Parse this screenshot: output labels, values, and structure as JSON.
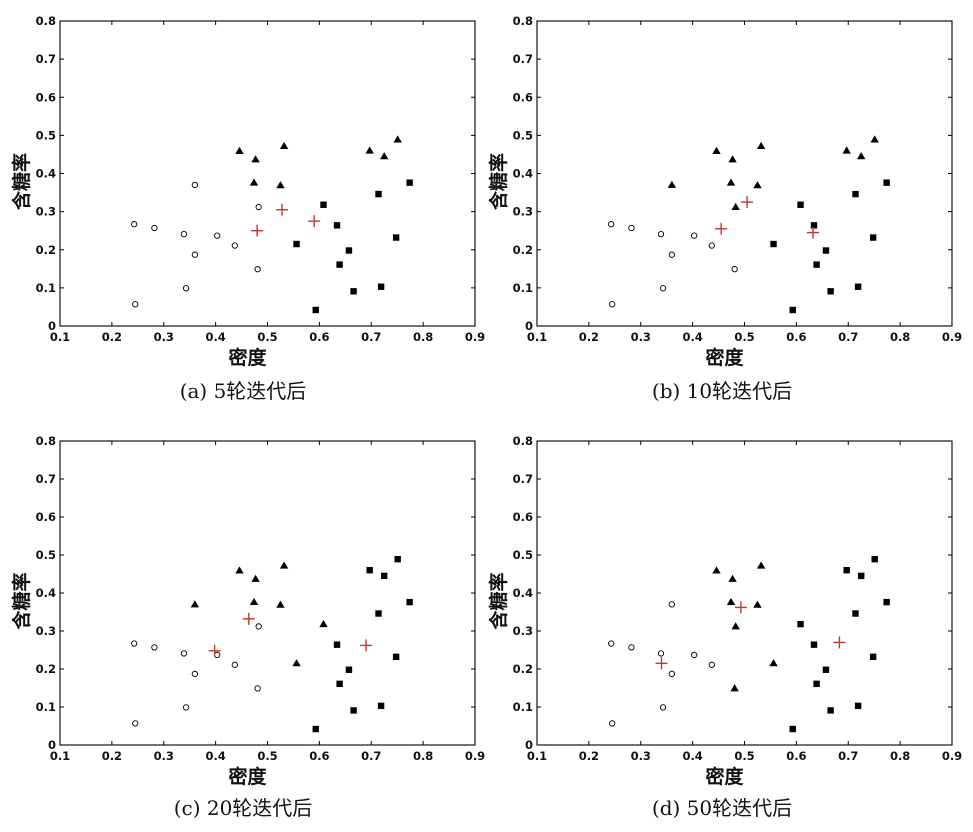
{
  "chart_data": [
    {
      "type": "scatter",
      "caption": "(a) 5轮迭代后",
      "xlabel": "密度",
      "ylabel": "含糖率",
      "xlim": [
        0.1,
        0.9
      ],
      "ylim": [
        0,
        0.8
      ],
      "xticks": [
        "0.1",
        "0.2",
        "0.3",
        "0.4",
        "0.5",
        "0.6",
        "0.7",
        "0.8",
        "0.9"
      ],
      "yticks": [
        "0",
        "0.1",
        "0.2",
        "0.3",
        "0.4",
        "0.5",
        "0.6",
        "0.7",
        "0.8"
      ],
      "series": [
        {
          "name": "circle",
          "marker": "circle",
          "points": [
            [
              0.243,
              0.267
            ],
            [
              0.245,
              0.057
            ],
            [
              0.282,
              0.257
            ],
            [
              0.339,
              0.241
            ],
            [
              0.343,
              0.099
            ],
            [
              0.36,
              0.37
            ],
            [
              0.36,
              0.187
            ],
            [
              0.403,
              0.237
            ],
            [
              0.437,
              0.211
            ],
            [
              0.481,
              0.149
            ],
            [
              0.483,
              0.312
            ]
          ]
        },
        {
          "name": "triangle",
          "marker": "triangle",
          "points": [
            [
              0.446,
              0.459
            ],
            [
              0.474,
              0.376
            ],
            [
              0.477,
              0.437
            ],
            [
              0.525,
              0.369
            ],
            [
              0.532,
              0.472
            ],
            [
              0.697,
              0.46
            ],
            [
              0.725,
              0.445
            ],
            [
              0.751,
              0.489
            ]
          ]
        },
        {
          "name": "square",
          "marker": "square",
          "points": [
            [
              0.556,
              0.215
            ],
            [
              0.593,
              0.042
            ],
            [
              0.608,
              0.318
            ],
            [
              0.634,
              0.264
            ],
            [
              0.639,
              0.161
            ],
            [
              0.657,
              0.198
            ],
            [
              0.666,
              0.091
            ],
            [
              0.714,
              0.346
            ],
            [
              0.719,
              0.103
            ],
            [
              0.748,
              0.232
            ],
            [
              0.774,
              0.376
            ]
          ]
        },
        {
          "name": "centroid",
          "marker": "plus",
          "color": "#c0392b",
          "points": [
            [
              0.48,
              0.25
            ],
            [
              0.528,
              0.305
            ],
            [
              0.59,
              0.275
            ]
          ]
        }
      ]
    },
    {
      "type": "scatter",
      "caption": "(b) 10轮迭代后",
      "xlabel": "密度",
      "ylabel": "含糖率",
      "xlim": [
        0.1,
        0.9
      ],
      "ylim": [
        0,
        0.8
      ],
      "xticks": [
        "0.1",
        "0.2",
        "0.3",
        "0.4",
        "0.5",
        "0.6",
        "0.7",
        "0.8",
        "0.9"
      ],
      "yticks": [
        "0",
        "0.1",
        "0.2",
        "0.3",
        "0.4",
        "0.5",
        "0.6",
        "0.7",
        "0.8"
      ],
      "series": [
        {
          "name": "circle",
          "marker": "circle",
          "points": [
            [
              0.243,
              0.267
            ],
            [
              0.245,
              0.057
            ],
            [
              0.282,
              0.257
            ],
            [
              0.339,
              0.241
            ],
            [
              0.343,
              0.099
            ],
            [
              0.36,
              0.187
            ],
            [
              0.403,
              0.237
            ],
            [
              0.437,
              0.211
            ],
            [
              0.481,
              0.149
            ]
          ]
        },
        {
          "name": "triangle",
          "marker": "triangle",
          "points": [
            [
              0.36,
              0.37
            ],
            [
              0.446,
              0.459
            ],
            [
              0.474,
              0.376
            ],
            [
              0.477,
              0.437
            ],
            [
              0.483,
              0.312
            ],
            [
              0.525,
              0.369
            ],
            [
              0.532,
              0.472
            ],
            [
              0.697,
              0.46
            ],
            [
              0.725,
              0.445
            ],
            [
              0.751,
              0.489
            ]
          ]
        },
        {
          "name": "square",
          "marker": "square",
          "points": [
            [
              0.556,
              0.215
            ],
            [
              0.593,
              0.042
            ],
            [
              0.608,
              0.318
            ],
            [
              0.634,
              0.264
            ],
            [
              0.639,
              0.161
            ],
            [
              0.657,
              0.198
            ],
            [
              0.666,
              0.091
            ],
            [
              0.714,
              0.346
            ],
            [
              0.719,
              0.103
            ],
            [
              0.748,
              0.232
            ],
            [
              0.774,
              0.376
            ]
          ]
        },
        {
          "name": "centroid",
          "marker": "plus",
          "color": "#c0392b",
          "points": [
            [
              0.455,
              0.255
            ],
            [
              0.505,
              0.325
            ],
            [
              0.632,
              0.245
            ]
          ]
        }
      ]
    },
    {
      "type": "scatter",
      "caption": "(c) 20轮迭代后",
      "xlabel": "密度",
      "ylabel": "含糖率",
      "xlim": [
        0.1,
        0.9
      ],
      "ylim": [
        0,
        0.8
      ],
      "xticks": [
        "0.1",
        "0.2",
        "0.3",
        "0.4",
        "0.5",
        "0.6",
        "0.7",
        "0.8",
        "0.9"
      ],
      "yticks": [
        "0",
        "0.1",
        "0.2",
        "0.3",
        "0.4",
        "0.5",
        "0.6",
        "0.7",
        "0.8"
      ],
      "series": [
        {
          "name": "circle",
          "marker": "circle",
          "points": [
            [
              0.243,
              0.267
            ],
            [
              0.245,
              0.057
            ],
            [
              0.282,
              0.257
            ],
            [
              0.339,
              0.241
            ],
            [
              0.343,
              0.099
            ],
            [
              0.36,
              0.187
            ],
            [
              0.403,
              0.237
            ],
            [
              0.437,
              0.211
            ],
            [
              0.481,
              0.149
            ],
            [
              0.483,
              0.312
            ]
          ]
        },
        {
          "name": "triangle",
          "marker": "triangle",
          "points": [
            [
              0.36,
              0.37
            ],
            [
              0.446,
              0.459
            ],
            [
              0.474,
              0.376
            ],
            [
              0.477,
              0.437
            ],
            [
              0.525,
              0.369
            ],
            [
              0.532,
              0.472
            ],
            [
              0.556,
              0.215
            ],
            [
              0.608,
              0.318
            ]
          ]
        },
        {
          "name": "square",
          "marker": "square",
          "points": [
            [
              0.593,
              0.042
            ],
            [
              0.634,
              0.264
            ],
            [
              0.639,
              0.161
            ],
            [
              0.657,
              0.198
            ],
            [
              0.666,
              0.091
            ],
            [
              0.697,
              0.46
            ],
            [
              0.714,
              0.346
            ],
            [
              0.719,
              0.103
            ],
            [
              0.725,
              0.445
            ],
            [
              0.748,
              0.232
            ],
            [
              0.751,
              0.489
            ],
            [
              0.774,
              0.376
            ]
          ]
        },
        {
          "name": "centroid",
          "marker": "plus",
          "color": "#c0392b",
          "points": [
            [
              0.398,
              0.248
            ],
            [
              0.464,
              0.332
            ],
            [
              0.69,
              0.262
            ]
          ]
        }
      ]
    },
    {
      "type": "scatter",
      "caption": "(d) 50轮迭代后",
      "xlabel": "密度",
      "ylabel": "含糖率",
      "xlim": [
        0.1,
        0.9
      ],
      "ylim": [
        0,
        0.8
      ],
      "xticks": [
        "0.1",
        "0.2",
        "0.3",
        "0.4",
        "0.5",
        "0.6",
        "0.7",
        "0.8",
        "0.9"
      ],
      "yticks": [
        "0",
        "0.1",
        "0.2",
        "0.3",
        "0.4",
        "0.5",
        "0.6",
        "0.7",
        "0.8"
      ],
      "series": [
        {
          "name": "circle",
          "marker": "circle",
          "points": [
            [
              0.243,
              0.267
            ],
            [
              0.245,
              0.057
            ],
            [
              0.282,
              0.257
            ],
            [
              0.339,
              0.241
            ],
            [
              0.343,
              0.099
            ],
            [
              0.36,
              0.37
            ],
            [
              0.36,
              0.187
            ],
            [
              0.403,
              0.237
            ],
            [
              0.437,
              0.211
            ]
          ]
        },
        {
          "name": "triangle",
          "marker": "triangle",
          "points": [
            [
              0.446,
              0.459
            ],
            [
              0.474,
              0.376
            ],
            [
              0.477,
              0.437
            ],
            [
              0.481,
              0.149
            ],
            [
              0.483,
              0.312
            ],
            [
              0.525,
              0.369
            ],
            [
              0.532,
              0.472
            ],
            [
              0.556,
              0.215
            ]
          ]
        },
        {
          "name": "square",
          "marker": "square",
          "points": [
            [
              0.593,
              0.042
            ],
            [
              0.608,
              0.318
            ],
            [
              0.634,
              0.264
            ],
            [
              0.639,
              0.161
            ],
            [
              0.657,
              0.198
            ],
            [
              0.666,
              0.091
            ],
            [
              0.697,
              0.46
            ],
            [
              0.714,
              0.346
            ],
            [
              0.719,
              0.103
            ],
            [
              0.725,
              0.445
            ],
            [
              0.748,
              0.232
            ],
            [
              0.751,
              0.489
            ],
            [
              0.774,
              0.376
            ]
          ]
        },
        {
          "name": "centroid",
          "marker": "plus",
          "color": "#c0392b",
          "points": [
            [
              0.34,
              0.215
            ],
            [
              0.493,
              0.362
            ],
            [
              0.683,
              0.27
            ]
          ]
        }
      ]
    }
  ]
}
